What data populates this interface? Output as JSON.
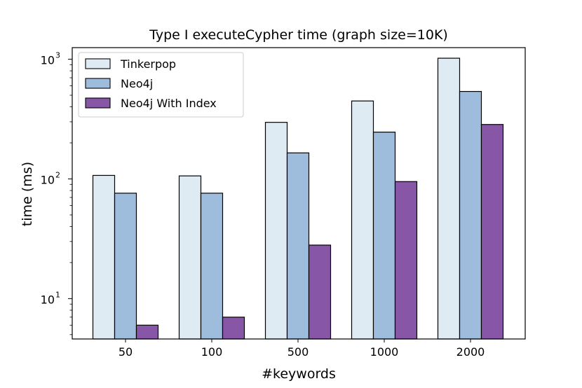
{
  "chart_data": {
    "type": "bar",
    "title": "Type I executeCypher time (graph size=10K)",
    "xlabel": "#keywords",
    "ylabel": "time (ms)",
    "yscale": "log",
    "ylim": [
      4.6,
      1250
    ],
    "yticks": [
      {
        "value": 10,
        "base": "10",
        "exp": "1"
      },
      {
        "value": 100,
        "base": "10",
        "exp": "2"
      },
      {
        "value": 1000,
        "base": "10",
        "exp": "3"
      }
    ],
    "categories": [
      "50",
      "100",
      "500",
      "1000",
      "2000"
    ],
    "series": [
      {
        "name": "Tinkerpop",
        "color": "#deebf3",
        "values": [
          107,
          106,
          297,
          448,
          1020
        ]
      },
      {
        "name": "Neo4j",
        "color": "#9ebcdb",
        "values": [
          76,
          76,
          165,
          246,
          538
        ]
      },
      {
        "name": "Neo4j With Index",
        "color": "#8856a7",
        "values": [
          6.0,
          7.0,
          28,
          95,
          285
        ]
      }
    ],
    "legend": "top-left",
    "grid": false
  }
}
